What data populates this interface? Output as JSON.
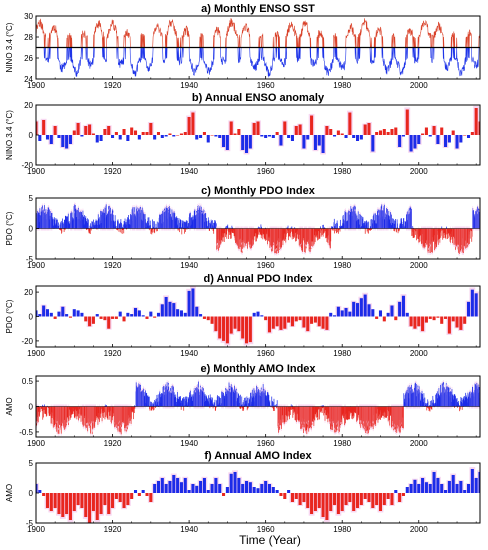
{
  "figure": {
    "xlabel": "Time (Year)"
  },
  "chart_data": [
    {
      "id": "a",
      "type": "line",
      "title": "a) Monthly ENSO SST",
      "ylabel": "NINO 3.4 (°C)",
      "xlim": [
        1900,
        2016
      ],
      "ylim": [
        24,
        30
      ],
      "xticks": [
        1900,
        1920,
        1940,
        1960,
        1980,
        2000
      ],
      "yticks": [
        24,
        26,
        28,
        30
      ],
      "baseline": 27,
      "colors": {
        "above": "#d9432b",
        "below": "#1f35e8",
        "baseline": "#000000"
      },
      "monthly": true,
      "seed": 11
    },
    {
      "id": "b",
      "type": "bar",
      "title": "b) Annual ENSO anomaly",
      "ylabel": "NINO 3.4 (°C)",
      "xlim": [
        1900,
        2016
      ],
      "ylim": [
        -20,
        20
      ],
      "xticks": [
        1900,
        1920,
        1940,
        1960,
        1980,
        2000
      ],
      "yticks": [
        -20,
        0,
        20
      ],
      "x_start": 1900,
      "values": [
        9,
        -4,
        10,
        -3,
        -6,
        6,
        -2,
        -8,
        -9,
        -6,
        3,
        8,
        -1,
        6,
        7,
        1,
        -5,
        -4,
        4,
        6,
        -2,
        2,
        -3,
        4,
        -4,
        5,
        3,
        -3,
        2,
        2,
        8,
        -3,
        2,
        -2,
        -1,
        1,
        -1,
        0,
        1,
        2,
        12,
        15,
        -3,
        -2,
        2,
        -5,
        0,
        -1,
        -2,
        -8,
        -10,
        9,
        1,
        4,
        -10,
        -12,
        -9,
        8,
        9,
        -1,
        -2,
        -1,
        -2,
        2,
        -7,
        9,
        -2,
        -4,
        6,
        7,
        -9,
        -3,
        13,
        -10,
        -7,
        -12,
        6,
        4,
        -1,
        3,
        1,
        -2,
        15,
        -2,
        -4,
        -3,
        7,
        8,
        -11,
        2,
        3,
        4,
        2,
        4,
        5,
        -8,
        -1,
        17,
        -11,
        -9,
        -6,
        1,
        5,
        -1,
        6,
        -6,
        5,
        -8,
        -5,
        3,
        -9,
        -5,
        0,
        -2,
        2,
        18,
        9
      ],
      "colors": {
        "positive": "#e8261f",
        "negative": "#1c2be8",
        "shade": "#f7d6f0"
      }
    },
    {
      "id": "c",
      "type": "area",
      "title": "c) Monthly PDO Index",
      "ylabel": "PDO (°C)",
      "xlim": [
        1900,
        2016
      ],
      "ylim": [
        -5,
        5
      ],
      "xticks": [
        1900,
        1920,
        1940,
        1960,
        1980,
        2000
      ],
      "yticks": [
        -5,
        0,
        5
      ],
      "monthly": true,
      "seed": 23,
      "colors": {
        "positive": "#1c2be8",
        "negative": "#e8261f",
        "shade": "#f7d6f0"
      }
    },
    {
      "id": "d",
      "type": "bar",
      "title": "d) Annual PDO Index",
      "ylabel": "PDO (°C)",
      "xlim": [
        1900,
        2016
      ],
      "ylim": [
        -25,
        25
      ],
      "xticks": [
        1900,
        1920,
        1940,
        1960,
        1980,
        2000
      ],
      "yticks": [
        -20,
        0,
        20
      ],
      "x_start": 1900,
      "values": [
        5,
        2,
        9,
        6,
        3,
        -2,
        4,
        8,
        2,
        -1,
        6,
        5,
        3,
        -4,
        -8,
        -6,
        2,
        -2,
        -3,
        -10,
        -2,
        -2,
        4,
        -4,
        3,
        2,
        7,
        5,
        1,
        -2,
        4,
        -1,
        3,
        10,
        16,
        12,
        11,
        6,
        5,
        3,
        21,
        23,
        8,
        2,
        -2,
        -3,
        -6,
        -12,
        -18,
        -20,
        -22,
        -14,
        -10,
        -12,
        -18,
        -22,
        -21,
        3,
        4,
        1,
        -3,
        -13,
        -10,
        -8,
        -11,
        -10,
        -5,
        -8,
        -4,
        -3,
        -9,
        -12,
        -6,
        -5,
        -8,
        -10,
        -11,
        3,
        1,
        8,
        5,
        7,
        4,
        12,
        11,
        15,
        18,
        10,
        6,
        -2,
        5,
        -4,
        3,
        9,
        -3,
        12,
        17,
        3,
        -8,
        -10,
        -8,
        -12,
        -5,
        -2,
        -3,
        -1,
        -6,
        -2,
        -14,
        -4,
        -9,
        -11,
        -6,
        12,
        22,
        19
      ],
      "colors": {
        "positive": "#1c2be8",
        "negative": "#e8261f",
        "shade": "#f7d6f0"
      }
    },
    {
      "id": "e",
      "type": "area",
      "title": "e) Monthly AMO Index",
      "ylabel": "AMO",
      "xlim": [
        1900,
        2016
      ],
      "ylim": [
        -0.6,
        0.6
      ],
      "xticks": [
        1900,
        1920,
        1940,
        1960,
        1980,
        2000
      ],
      "yticks": [
        -0.5,
        0,
        0.5
      ],
      "monthly": true,
      "seed": 37,
      "colors": {
        "positive": "#1c2be8",
        "negative": "#e8261f",
        "shade": "#f7d6f0"
      }
    },
    {
      "id": "f",
      "type": "bar",
      "title": "f) Annual AMO Index",
      "ylabel": "AMO",
      "xlim": [
        1900,
        2016
      ],
      "ylim": [
        -5,
        5
      ],
      "xticks": [
        1900,
        1920,
        1940,
        1960,
        1980,
        2000
      ],
      "yticks": [
        -5,
        0,
        5
      ],
      "x_start": 1900,
      "values": [
        1.5,
        0.5,
        -0.5,
        -2.5,
        -3,
        -2.5,
        -3.5,
        -4,
        -3.5,
        -4.5,
        -3,
        -2,
        -2.5,
        -4,
        -5,
        -3,
        -4.5,
        -3.5,
        -2,
        -3.5,
        -2.5,
        -1,
        -1.5,
        -2.5,
        -2,
        -1,
        0.5,
        -0.5,
        0.5,
        -0.5,
        -1.5,
        1.5,
        2,
        2.5,
        1.5,
        2,
        3,
        2.5,
        1.8,
        2.5,
        0.5,
        1.5,
        1.2,
        2,
        2.5,
        0.5,
        1.5,
        2.5,
        1.5,
        -0.5,
        1,
        3.2,
        3.5,
        2.5,
        1.5,
        2,
        1.8,
        1,
        0.8,
        1.5,
        2,
        1.5,
        1,
        0.5,
        -0.5,
        -1,
        0.5,
        -1.5,
        -1,
        -2,
        -1.5,
        -2.5,
        -3.5,
        -3,
        -2.5,
        -4,
        -4.5,
        -3,
        -2,
        -3.5,
        -3,
        -2,
        -1.5,
        -3,
        -2.5,
        -2,
        -1,
        -1.5,
        -2.5,
        -2,
        -3,
        -2,
        -1,
        -2,
        0.5,
        -1.5,
        -0.5,
        1,
        1.5,
        2.2,
        1.5,
        2.5,
        1.8,
        1.5,
        3.5,
        2.5,
        1.5,
        0.5,
        2,
        3,
        1.5,
        2,
        0.5,
        1.5,
        4,
        2.5,
        3.5
      ],
      "colors": {
        "positive": "#1c2be8",
        "negative": "#e8261f",
        "shade": "#f7d6f0"
      }
    }
  ]
}
